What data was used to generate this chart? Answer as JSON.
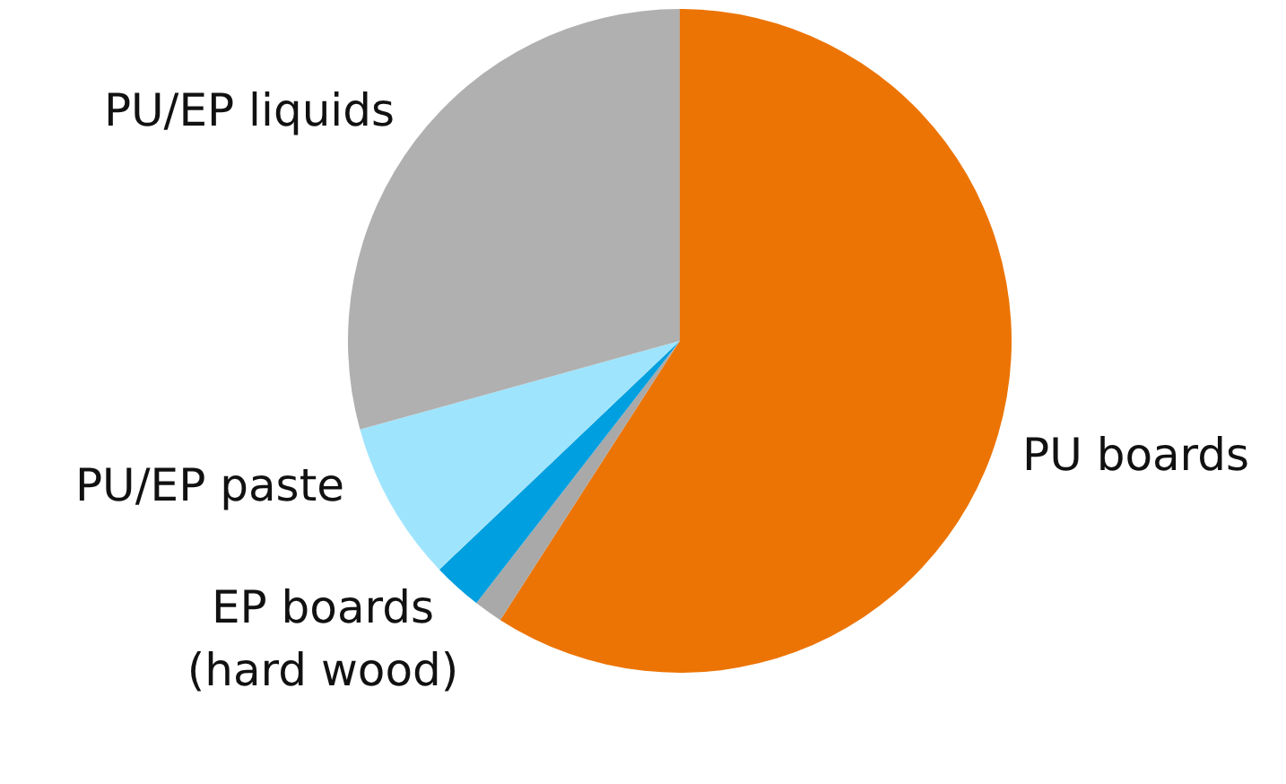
{
  "chart_data": {
    "type": "pie",
    "categories": [
      "PU boards",
      "(hard wood)",
      "EP boards",
      "PU/EP paste",
      "PU/EP liquids"
    ],
    "values": [
      59.1,
      1.4,
      2.4,
      7.8,
      29.3
    ],
    "colors": [
      "#ec7404",
      "#a9a9a9",
      "#009fdf",
      "#9fe4fd",
      "#b0b0b0"
    ]
  }
}
